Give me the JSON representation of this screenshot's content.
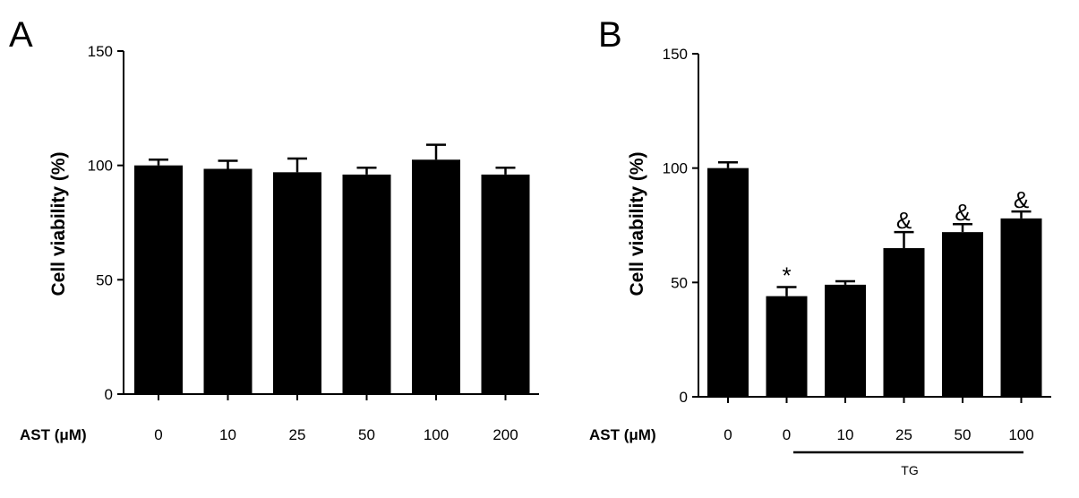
{
  "chart_data": [
    {
      "panel": "A",
      "type": "bar",
      "ylabel": "Cell viability (%)",
      "xtitle": "AST (μM)",
      "categories": [
        "0",
        "10",
        "25",
        "50",
        "100",
        "200"
      ],
      "values": [
        100,
        98.5,
        97,
        96,
        102.5,
        96
      ],
      "errors": [
        2.5,
        3.5,
        6,
        3,
        6.5,
        3
      ],
      "annotations": [
        "",
        "",
        "",
        "",
        "",
        ""
      ],
      "ylim": [
        0,
        150
      ],
      "yticks": [
        "0",
        "50",
        "100",
        "150"
      ],
      "group_label": "",
      "grid": false,
      "color": "#000000"
    },
    {
      "panel": "B",
      "type": "bar",
      "ylabel": "Cell viability (%)",
      "xtitle": "AST (μM)",
      "categories": [
        "0",
        "0",
        "10",
        "25",
        "50",
        "100"
      ],
      "values": [
        100,
        44,
        49,
        65,
        72,
        78
      ],
      "errors": [
        2.5,
        4,
        1.5,
        7,
        3.5,
        3
      ],
      "annotations": [
        "",
        "*",
        "",
        "&",
        "&",
        "&"
      ],
      "ylim": [
        0,
        150
      ],
      "yticks": [
        "0",
        "50",
        "100",
        "150"
      ],
      "group_label": "TG",
      "group_span": [
        1,
        5
      ],
      "grid": false,
      "color": "#000000"
    }
  ]
}
